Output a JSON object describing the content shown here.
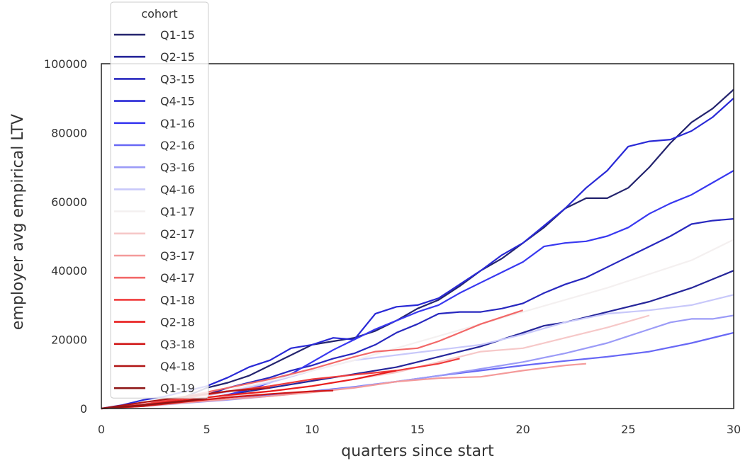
{
  "chart_data": {
    "type": "line",
    "xlabel": "quarters since start",
    "ylabel": "employer avg empirical LTV",
    "xlim": [
      0,
      30
    ],
    "ylim": [
      0,
      100000
    ],
    "xticks": [
      "0",
      "5",
      "10",
      "15",
      "20",
      "25",
      "30"
    ],
    "yticks": [
      "0",
      "20000",
      "40000",
      "60000",
      "80000",
      "100000"
    ],
    "grid": false,
    "legend": {
      "title": "cohort",
      "placement": "upper-left, overflowing above axes"
    },
    "series": [
      {
        "name": "Q1-15",
        "color": "#24246e",
        "x": [
          0,
          2,
          4,
          5,
          6,
          7,
          8,
          9,
          10,
          11,
          12,
          13,
          14,
          15,
          16,
          17,
          18,
          19,
          20,
          21,
          22,
          23,
          24,
          25,
          26,
          27,
          28,
          29,
          30
        ],
        "values": [
          0,
          800,
          3500,
          6000,
          7500,
          9500,
          12500,
          15500,
          18500,
          19500,
          20500,
          22500,
          25500,
          29000,
          31500,
          35500,
          40000,
          43500,
          48000,
          52500,
          58000,
          61000,
          61000,
          64000,
          70000,
          77000,
          83000,
          87000,
          92500
        ]
      },
      {
        "name": "Q2-15",
        "color": "#26269a",
        "x": [
          0,
          1,
          2,
          3,
          4,
          5,
          6,
          7,
          8,
          9,
          10,
          11,
          12,
          13,
          14,
          15,
          16,
          17,
          18,
          19,
          20,
          21,
          22,
          23,
          24,
          25,
          26,
          27,
          28,
          29,
          30
        ],
        "values": [
          0,
          400,
          900,
          1400,
          2000,
          3000,
          4000,
          5000,
          6000,
          7000,
          8000,
          9000,
          10000,
          11000,
          12000,
          13500,
          15000,
          16500,
          18000,
          20000,
          22000,
          24000,
          25000,
          26500,
          28000,
          29500,
          31000,
          33000,
          35000,
          37500,
          40000
        ]
      },
      {
        "name": "Q3-15",
        "color": "#2828bf",
        "x": [
          0,
          4,
          5,
          6,
          7,
          8,
          9,
          10,
          11,
          12,
          13,
          14,
          15,
          16,
          17,
          18,
          19,
          20,
          21,
          22,
          23,
          24,
          25,
          26,
          27,
          28,
          29,
          30
        ],
        "values": [
          0,
          2500,
          4000,
          6000,
          7500,
          9000,
          11000,
          12500,
          14500,
          16000,
          18500,
          22000,
          24500,
          27500,
          28000,
          28000,
          29000,
          30500,
          33500,
          36000,
          38000,
          41000,
          44000,
          47000,
          50000,
          53500,
          54500,
          55000
        ]
      },
      {
        "name": "Q4-15",
        "color": "#2929d6",
        "x": [
          0,
          1,
          2,
          3,
          4,
          5,
          6,
          7,
          8,
          9,
          10,
          11,
          12,
          13,
          14,
          15,
          16,
          17,
          18,
          19,
          20,
          21,
          22,
          23,
          24,
          25,
          26,
          27,
          28,
          29,
          30
        ],
        "values": [
          0,
          1000,
          2500,
          3500,
          5000,
          6500,
          9000,
          12000,
          14000,
          17500,
          18500,
          20500,
          20000,
          27500,
          29500,
          30000,
          32000,
          36000,
          40000,
          44500,
          48000,
          53000,
          58000,
          64000,
          69000,
          76000,
          77500,
          78000,
          80500,
          84500,
          90000
        ]
      },
      {
        "name": "Q1-16",
        "color": "#3838f0",
        "x": [
          0,
          3,
          5,
          6,
          7,
          8,
          9,
          10,
          11,
          12,
          13,
          14,
          15,
          16,
          17,
          18,
          19,
          20,
          21,
          22,
          23,
          24,
          25,
          26,
          27,
          28,
          29,
          30
        ],
        "values": [
          0,
          1200,
          2500,
          4000,
          5500,
          7500,
          10000,
          13500,
          17000,
          20000,
          23000,
          25500,
          28000,
          30000,
          33500,
          36500,
          39500,
          42500,
          47000,
          48000,
          48500,
          50000,
          52500,
          56500,
          59500,
          62000,
          65500,
          69000
        ]
      },
      {
        "name": "Q2-16",
        "color": "#6868f5",
        "x": [
          0,
          2,
          4,
          6,
          8,
          10,
          12,
          14,
          16,
          18,
          20,
          22,
          24,
          26,
          28,
          30
        ],
        "values": [
          0,
          800,
          1700,
          2700,
          3800,
          5000,
          6300,
          7800,
          9500,
          11000,
          12500,
          13800,
          15000,
          16500,
          19000,
          22000
        ]
      },
      {
        "name": "Q3-16",
        "color": "#9b9bf7",
        "x": [
          0,
          2,
          4,
          6,
          8,
          10,
          12,
          14,
          16,
          18,
          20,
          22,
          24,
          26,
          27,
          28,
          29,
          30
        ],
        "values": [
          0,
          700,
          1600,
          2500,
          3600,
          4800,
          6200,
          7800,
          9500,
          11500,
          13500,
          16000,
          19000,
          23000,
          25000,
          26000,
          26000,
          27000
        ]
      },
      {
        "name": "Q4-16",
        "color": "#c8c8fa",
        "x": [
          0,
          2,
          4,
          6,
          8,
          10,
          12,
          14,
          16,
          18,
          20,
          22,
          24,
          26,
          28,
          30
        ],
        "values": [
          0,
          1200,
          2800,
          4800,
          7500,
          11000,
          14000,
          15500,
          17000,
          18500,
          21500,
          25000,
          27500,
          28500,
          30000,
          33000
        ]
      },
      {
        "name": "Q1-17",
        "color": "#f4f0f0",
        "x": [
          0,
          4,
          8,
          12,
          16,
          20,
          24,
          28,
          30
        ],
        "values": [
          0,
          2500,
          8000,
          14000,
          21000,
          28000,
          35000,
          43000,
          49000
        ]
      },
      {
        "name": "Q2-17",
        "color": "#f6c8c8",
        "x": [
          0,
          2,
          4,
          6,
          8,
          10,
          12,
          14,
          16,
          18,
          20,
          22,
          24,
          26
        ],
        "values": [
          0,
          900,
          2200,
          3500,
          5000,
          6600,
          8500,
          10500,
          13500,
          16500,
          17500,
          20500,
          23500,
          27000
        ]
      },
      {
        "name": "Q3-17",
        "color": "#f49a9a",
        "x": [
          0,
          2,
          4,
          6,
          8,
          10,
          12,
          14,
          16,
          18,
          20,
          22,
          23
        ],
        "values": [
          0,
          700,
          1700,
          2700,
          3600,
          4700,
          6000,
          7800,
          8800,
          9200,
          11000,
          12500,
          13000
        ]
      },
      {
        "name": "Q4-17",
        "color": "#f26868",
        "x": [
          0,
          2,
          4,
          6,
          8,
          10,
          12,
          13,
          14,
          15,
          16,
          17,
          18,
          19,
          20
        ],
        "values": [
          0,
          1200,
          3500,
          6000,
          8500,
          11500,
          15000,
          16500,
          17000,
          17500,
          19500,
          22000,
          24500,
          26500,
          28500
        ]
      },
      {
        "name": "Q1-18",
        "color": "#f03c3c",
        "x": [
          0,
          2,
          4,
          6,
          8,
          10,
          12,
          14,
          16,
          17
        ],
        "values": [
          0,
          1200,
          3000,
          5000,
          6500,
          8500,
          9800,
          11000,
          13000,
          14500
        ]
      },
      {
        "name": "Q2-18",
        "color": "#e81e1e",
        "x": [
          0,
          2,
          4,
          6,
          8,
          10,
          12,
          14
        ],
        "values": [
          0,
          1000,
          2500,
          3900,
          5000,
          6500,
          8500,
          11000
        ]
      },
      {
        "name": "Q3-18",
        "color": "#d01616",
        "x": [
          0,
          2,
          4,
          6,
          8,
          10,
          11
        ],
        "values": [
          0,
          700,
          2000,
          3200,
          4200,
          5000,
          5200
        ]
      },
      {
        "name": "Q4-18",
        "color": "#b01414",
        "x": [
          0,
          2,
          4,
          6,
          8
        ],
        "values": [
          0,
          1800,
          3500,
          5000,
          6000
        ]
      },
      {
        "name": "Q1-19",
        "color": "#8e1616",
        "x": [
          0,
          2,
          4,
          5
        ],
        "values": [
          0,
          1000,
          2200,
          3000
        ]
      }
    ]
  }
}
